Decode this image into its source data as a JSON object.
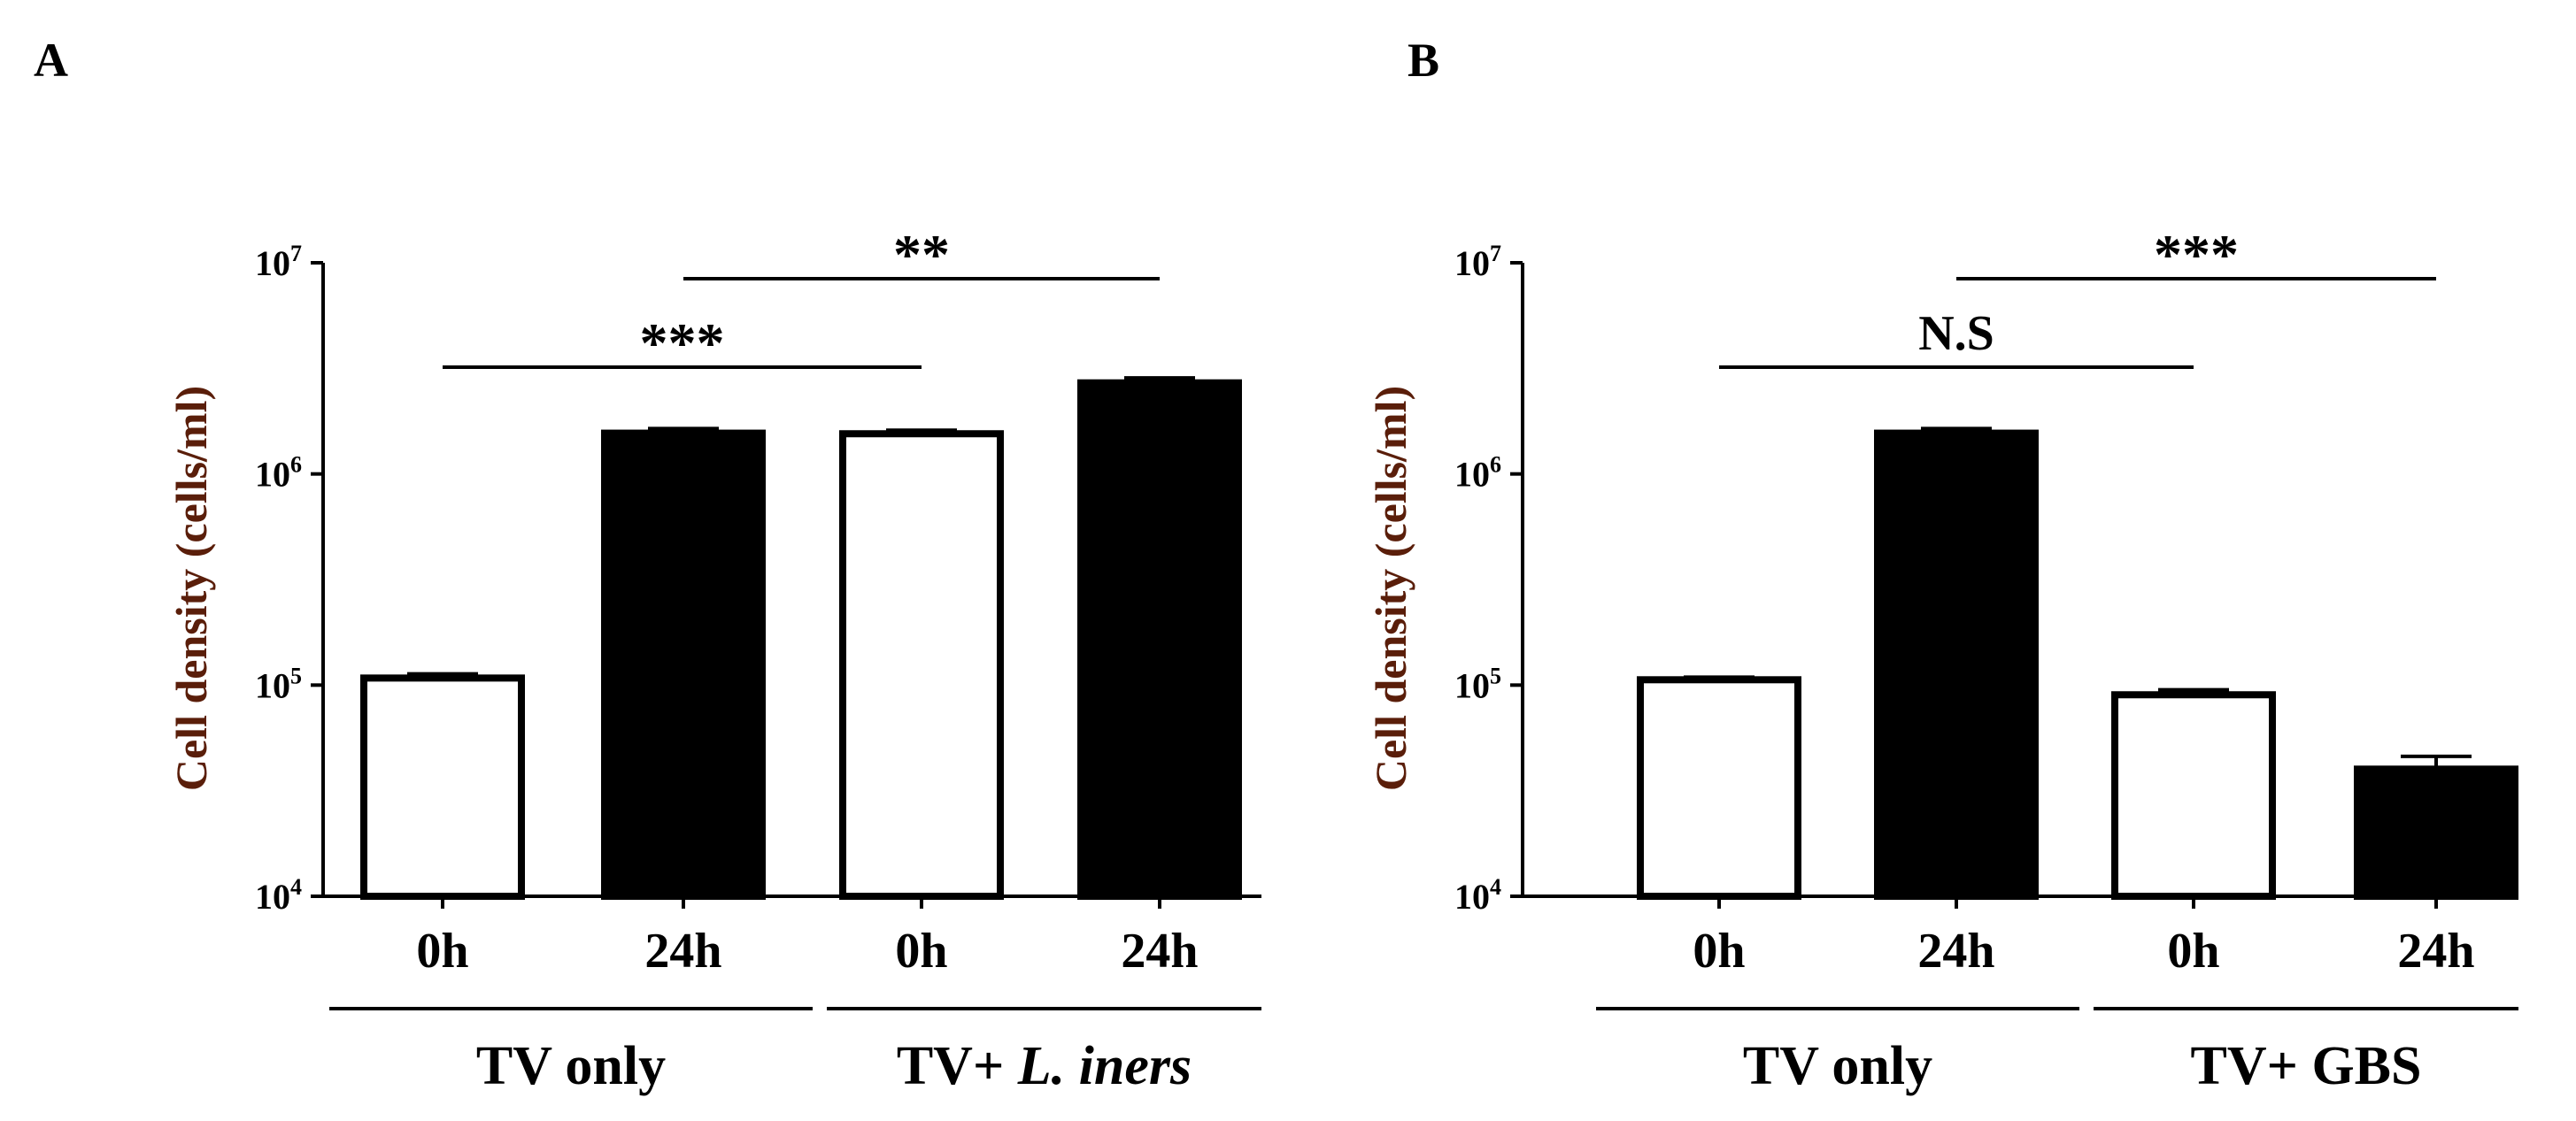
{
  "chart_data": [
    {
      "type": "bar",
      "panel_label": "A",
      "ylabel": "Cell density (cells/ml)",
      "yscale": "log",
      "ylim": [
        10000,
        10000000
      ],
      "yticks": [
        {
          "value": 10000,
          "base": "10",
          "exp": "4"
        },
        {
          "value": 100000,
          "base": "10",
          "exp": "5"
        },
        {
          "value": 1000000,
          "base": "10",
          "exp": "6"
        },
        {
          "value": 10000000,
          "base": "10",
          "exp": "7"
        }
      ],
      "categories": [
        "0h",
        "24h",
        "0h",
        "24h"
      ],
      "values": [
        108000,
        1560000,
        1550000,
        2700000
      ],
      "errors": [
        5000,
        80000,
        60000,
        150000
      ],
      "bar_fills": [
        "white",
        "black",
        "white",
        "black"
      ],
      "groups": [
        {
          "label": "TV only",
          "prefix": "TV only",
          "italic": "",
          "members": [
            0,
            1
          ]
        },
        {
          "label": "TV+ L. iners",
          "prefix": "TV+ ",
          "italic": "L. iners",
          "members": [
            2,
            3
          ]
        }
      ],
      "significance": [
        {
          "from": 0,
          "to": 2,
          "label": "***",
          "tier": 1
        },
        {
          "from": 1,
          "to": 3,
          "label": "**",
          "tier": 2
        }
      ]
    },
    {
      "type": "bar",
      "panel_label": "B",
      "ylabel": "Cell density (cells/ml)",
      "yscale": "log",
      "ylim": [
        10000,
        10000000
      ],
      "yticks": [
        {
          "value": 10000,
          "base": "10",
          "exp": "4"
        },
        {
          "value": 100000,
          "base": "10",
          "exp": "5"
        },
        {
          "value": 1000000,
          "base": "10",
          "exp": "6"
        },
        {
          "value": 10000000,
          "base": "10",
          "exp": "7"
        }
      ],
      "categories": [
        "0h",
        "24h",
        "0h",
        "24h"
      ],
      "values": [
        106000,
        1560000,
        90000,
        40000
      ],
      "errors": [
        3000,
        80000,
        5000,
        6000
      ],
      "bar_fills": [
        "white",
        "black",
        "white",
        "black"
      ],
      "groups": [
        {
          "label": "TV only",
          "prefix": "TV only",
          "italic": "",
          "members": [
            0,
            1
          ]
        },
        {
          "label": "TV+ GBS",
          "prefix": "TV+ GBS",
          "italic": "",
          "members": [
            2,
            3
          ]
        }
      ],
      "significance": [
        {
          "from": 0,
          "to": 2,
          "label": "N.S",
          "tier": 1
        },
        {
          "from": 1,
          "to": 3,
          "label": "***",
          "tier": 2
        }
      ]
    }
  ]
}
